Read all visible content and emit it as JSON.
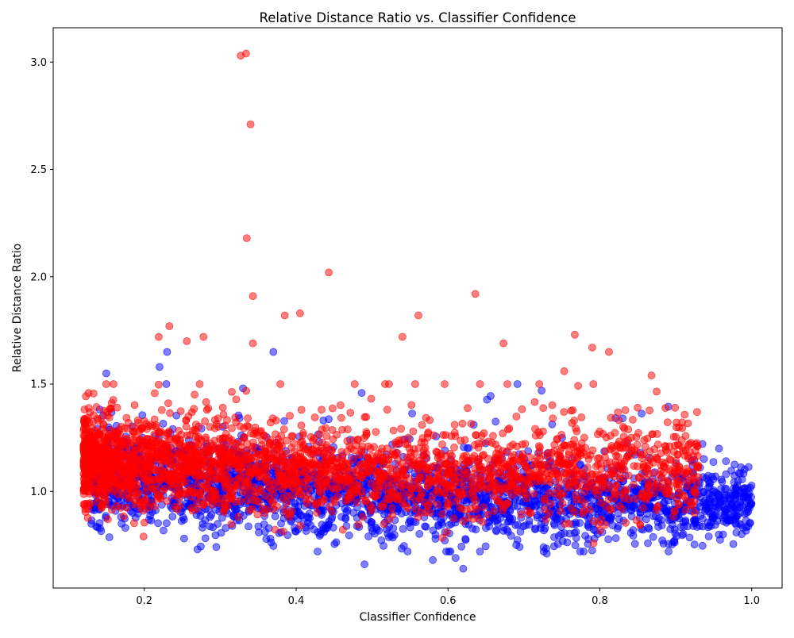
{
  "chart_data": {
    "type": "scatter",
    "title": "Relative Distance Ratio vs. Classifier Confidence",
    "xlabel": "Classifier Confidence",
    "ylabel": "Relative Distance Ratio",
    "xlim": [
      0.08,
      1.04
    ],
    "ylim": [
      0.55,
      3.16
    ],
    "xticks": [
      "0.2",
      "0.4",
      "0.6",
      "0.8",
      "1.0"
    ],
    "xtick_values": [
      0.2,
      0.4,
      0.6,
      0.8,
      1.0
    ],
    "yticks": [
      "1.0",
      "1.5",
      "2.0",
      "2.5",
      "3.0"
    ],
    "ytick_values": [
      1.0,
      1.5,
      2.0,
      2.5,
      3.0
    ],
    "grid": false,
    "legend": "none",
    "series": [
      {
        "color": "#0000ff",
        "alpha": 0.5,
        "x_range": [
          0.13,
          1.0
        ],
        "notable_points": [
          {
            "x": 0.15,
            "y": 1.55
          },
          {
            "x": 0.23,
            "y": 1.65
          },
          {
            "x": 0.22,
            "y": 1.58
          },
          {
            "x": 0.37,
            "y": 1.65
          },
          {
            "x": 0.33,
            "y": 1.48
          },
          {
            "x": 0.49,
            "y": 0.66
          },
          {
            "x": 0.62,
            "y": 0.64
          },
          {
            "x": 0.61,
            "y": 0.69
          },
          {
            "x": 0.58,
            "y": 0.68
          },
          {
            "x": 0.73,
            "y": 0.71
          },
          {
            "x": 0.83,
            "y": 1.34
          },
          {
            "x": 0.17,
            "y": 0.85
          },
          {
            "x": 0.27,
            "y": 0.73
          }
        ],
        "density_profile": [
          {
            "x": 0.2,
            "center": 1.05,
            "spread": 0.12
          },
          {
            "x": 0.4,
            "center": 1.0,
            "spread": 0.12
          },
          {
            "x": 0.6,
            "center": 0.97,
            "spread": 0.11
          },
          {
            "x": 0.8,
            "center": 0.95,
            "spread": 0.11
          },
          {
            "x": 1.0,
            "center": 0.93,
            "spread": 0.09
          }
        ]
      },
      {
        "color": "#ff0000",
        "alpha": 0.5,
        "x_range": [
          0.12,
          0.93
        ],
        "notable_points": [
          {
            "x": 0.327,
            "y": 3.03
          },
          {
            "x": 0.334,
            "y": 3.04
          },
          {
            "x": 0.34,
            "y": 2.71
          },
          {
            "x": 0.335,
            "y": 2.18
          },
          {
            "x": 0.443,
            "y": 2.02
          },
          {
            "x": 0.343,
            "y": 1.91
          },
          {
            "x": 0.636,
            "y": 1.92
          },
          {
            "x": 0.405,
            "y": 1.83
          },
          {
            "x": 0.385,
            "y": 1.82
          },
          {
            "x": 0.561,
            "y": 1.82
          },
          {
            "x": 0.233,
            "y": 1.77
          },
          {
            "x": 0.767,
            "y": 1.73
          },
          {
            "x": 0.219,
            "y": 1.72
          },
          {
            "x": 0.278,
            "y": 1.72
          },
          {
            "x": 0.54,
            "y": 1.72
          },
          {
            "x": 0.256,
            "y": 1.7
          },
          {
            "x": 0.673,
            "y": 1.69
          },
          {
            "x": 0.343,
            "y": 1.69
          },
          {
            "x": 0.79,
            "y": 1.67
          },
          {
            "x": 0.812,
            "y": 1.65
          },
          {
            "x": 0.753,
            "y": 1.56
          },
          {
            "x": 0.868,
            "y": 1.54
          },
          {
            "x": 0.928,
            "y": 1.37
          },
          {
            "x": 0.899,
            "y": 1.39
          },
          {
            "x": 0.199,
            "y": 0.79
          },
          {
            "x": 0.125,
            "y": 1.0
          },
          {
            "x": 0.128,
            "y": 1.14
          }
        ],
        "density_profile": [
          {
            "x": 0.2,
            "center": 1.14,
            "spread": 0.12
          },
          {
            "x": 0.4,
            "center": 1.1,
            "spread": 0.12
          },
          {
            "x": 0.6,
            "center": 1.08,
            "spread": 0.12
          },
          {
            "x": 0.8,
            "center": 1.1,
            "spread": 0.13
          }
        ]
      }
    ]
  }
}
